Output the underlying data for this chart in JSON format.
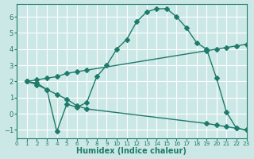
{
  "background_color": "#cce8e6",
  "grid_color": "#ffffff",
  "line_color": "#1e7a6a",
  "curve1_x": [
    1,
    2,
    3,
    4,
    5,
    6,
    7,
    8,
    9,
    10,
    11,
    12,
    13,
    14,
    15,
    16,
    17,
    18,
    19,
    20,
    21,
    22,
    23
  ],
  "curve1_y": [
    2.0,
    1.9,
    1.5,
    -1.1,
    0.6,
    0.4,
    0.7,
    2.3,
    3.0,
    4.0,
    4.6,
    5.7,
    6.3,
    6.5,
    6.5,
    6.0,
    5.3,
    4.4,
    4.0,
    2.2,
    0.1,
    -0.9,
    -1.0
  ],
  "curve2_x": [
    1,
    2,
    3,
    4,
    5,
    6,
    7,
    19,
    20,
    21,
    22,
    23
  ],
  "curve2_y": [
    2.0,
    2.1,
    2.2,
    2.3,
    2.5,
    2.6,
    2.7,
    3.9,
    4.0,
    4.1,
    4.2,
    4.3
  ],
  "curve3_x": [
    1,
    2,
    3,
    4,
    5,
    6,
    7,
    19,
    20,
    21,
    22,
    23
  ],
  "curve3_y": [
    2.0,
    1.8,
    1.5,
    1.2,
    0.9,
    0.5,
    0.3,
    -0.6,
    -0.7,
    -0.8,
    -0.9,
    -1.0
  ],
  "xlabel": "Humidex (Indice chaleur)",
  "xlim": [
    0,
    23
  ],
  "ylim": [
    -1.5,
    6.8
  ],
  "yticks": [
    -1,
    0,
    1,
    2,
    3,
    4,
    5,
    6
  ],
  "xticks": [
    0,
    1,
    2,
    3,
    4,
    5,
    6,
    7,
    8,
    9,
    10,
    11,
    12,
    13,
    14,
    15,
    16,
    17,
    18,
    19,
    20,
    21,
    22,
    23
  ],
  "markersize": 3
}
